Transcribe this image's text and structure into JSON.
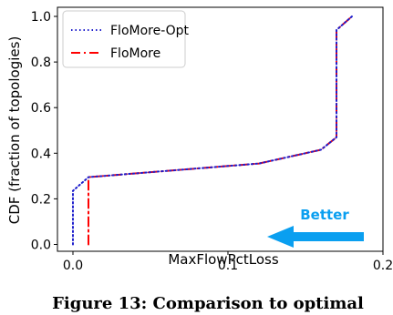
{
  "chart_data": {
    "type": "line",
    "xlabel": "MaxFlowPctLoss",
    "ylabel": "CDF (fraction of topologies)",
    "xlim": [
      -0.01,
      0.2
    ],
    "ylim": [
      -0.03,
      1.04
    ],
    "x_ticks": [
      "0.0",
      "0.1",
      "0.2"
    ],
    "x_tick_values": [
      0.0,
      0.1,
      0.2
    ],
    "y_ticks": [
      "0.0",
      "0.2",
      "0.4",
      "0.6",
      "0.8",
      "1.0"
    ],
    "y_tick_values": [
      0.0,
      0.2,
      0.4,
      0.6,
      0.8,
      1.0
    ],
    "grid": false,
    "legend_position": "upper-left",
    "series": [
      {
        "name": "FloMore-Opt",
        "style": "dotted",
        "color": "#1f1fcc",
        "x": [
          0.0,
          0.0,
          0.01,
          0.12,
          0.16,
          0.17,
          0.17,
          0.18
        ],
        "y": [
          0.0,
          0.235,
          0.295,
          0.355,
          0.415,
          0.47,
          0.94,
          1.0
        ]
      },
      {
        "name": "FloMore",
        "style": "dashdot",
        "color": "#ff0000",
        "x": [
          0.01,
          0.01,
          0.12,
          0.16,
          0.17,
          0.17,
          0.18
        ],
        "y": [
          0.0,
          0.295,
          0.355,
          0.415,
          0.47,
          0.94,
          1.0
        ]
      }
    ],
    "annotation": {
      "text": "Better",
      "color": "#0a9ff0"
    }
  },
  "caption": "Figure 13: Comparison to optimal"
}
